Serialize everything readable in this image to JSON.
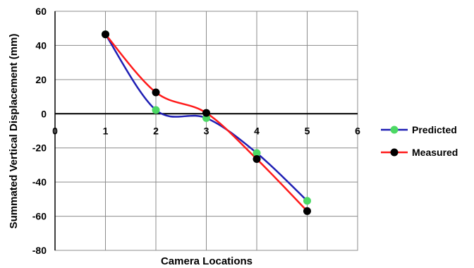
{
  "chart_data": {
    "type": "line",
    "xlabel": "Camera Locations",
    "ylabel": "Summated Vertical Displacement (mm)",
    "xlim": [
      0,
      6
    ],
    "ylim": [
      -80,
      60
    ],
    "x_ticks": [
      "0",
      "1",
      "2",
      "3",
      "4",
      "5",
      "6"
    ],
    "y_ticks": [
      "60",
      "40",
      "20",
      "0",
      "-20",
      "-40",
      "-60",
      "-80"
    ],
    "grid": true,
    "legend_position": "right",
    "smooth": true,
    "series": [
      {
        "name": "Predicted",
        "line_color": "#1f1fb4",
        "marker_color": "#4cd964",
        "x": [
          1,
          2,
          3,
          4,
          5
        ],
        "y": [
          46.5,
          2.2,
          -2.5,
          -23,
          -51
        ]
      },
      {
        "name": "Measured",
        "line_color": "#ff1a1a",
        "marker_color": "#000000",
        "x": [
          1,
          2,
          3,
          4,
          5
        ],
        "y": [
          46.5,
          12.5,
          0.5,
          -26.5,
          -57
        ]
      }
    ]
  }
}
